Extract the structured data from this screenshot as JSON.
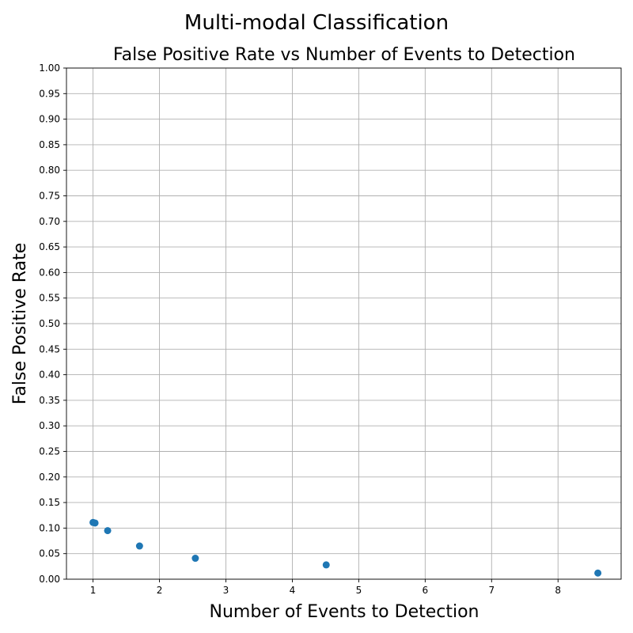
{
  "chart_data": {
    "type": "scatter",
    "suptitle": "Multi-modal Classification",
    "title": "False Positive Rate vs Number of Events to Detection",
    "xlabel": "Number of Events to Detection",
    "ylabel": "False Positive Rate",
    "xlim": [
      0.6,
      8.95
    ],
    "ylim": [
      0,
      1
    ],
    "xticks": [
      1,
      2,
      3,
      4,
      5,
      6,
      7,
      8
    ],
    "yticks": [
      0.0,
      0.05,
      0.1,
      0.15,
      0.2,
      0.25,
      0.3,
      0.35,
      0.4,
      0.45,
      0.5,
      0.55,
      0.6,
      0.65,
      0.7,
      0.75,
      0.8,
      0.85,
      0.9,
      0.95,
      1.0
    ],
    "grid": true,
    "marker_color": "#1f77b4",
    "points": [
      {
        "x": 1.0,
        "y": 0.111
      },
      {
        "x": 1.03,
        "y": 0.11
      },
      {
        "x": 1.22,
        "y": 0.095
      },
      {
        "x": 1.7,
        "y": 0.065
      },
      {
        "x": 2.54,
        "y": 0.041
      },
      {
        "x": 4.51,
        "y": 0.028
      },
      {
        "x": 8.6,
        "y": 0.012
      }
    ]
  }
}
